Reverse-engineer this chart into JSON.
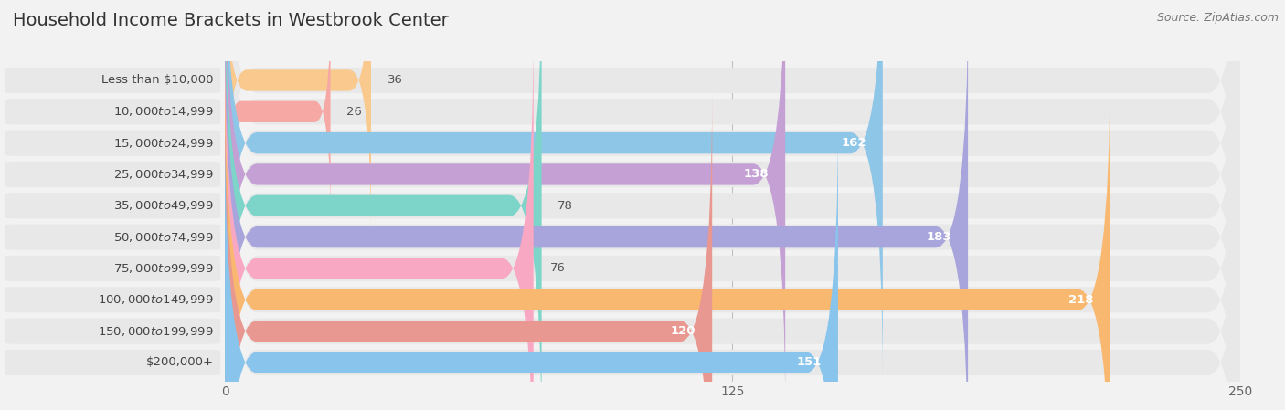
{
  "title": "Household Income Brackets in Westbrook Center",
  "source": "Source: ZipAtlas.com",
  "categories": [
    "Less than $10,000",
    "$10,000 to $14,999",
    "$15,000 to $24,999",
    "$25,000 to $34,999",
    "$35,000 to $49,999",
    "$50,000 to $74,999",
    "$75,000 to $99,999",
    "$100,000 to $149,999",
    "$150,000 to $199,999",
    "$200,000+"
  ],
  "values": [
    36,
    26,
    162,
    138,
    78,
    183,
    76,
    218,
    120,
    151
  ],
  "bar_colors": [
    "#f9c98e",
    "#f5a8a4",
    "#8ec6e8",
    "#c4a0d4",
    "#7dd4c8",
    "#a8a4dc",
    "#f9a8c4",
    "#f9b870",
    "#e89890",
    "#88c4ec"
  ],
  "xlim": [
    0,
    250
  ],
  "xticks": [
    0,
    125,
    250
  ],
  "background_color": "#f2f2f2",
  "row_bg_color": "#e8e8e8",
  "title_fontsize": 14,
  "cat_fontsize": 9.5,
  "val_fontsize": 9.5,
  "tick_fontsize": 10,
  "source_fontsize": 9
}
